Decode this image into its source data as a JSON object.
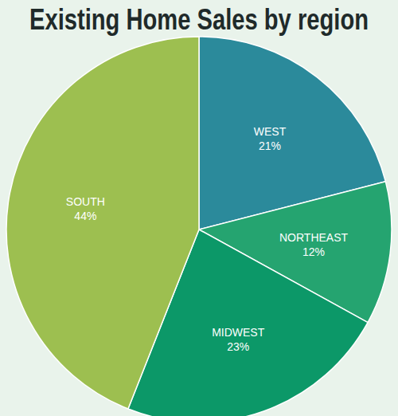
{
  "chart_data": {
    "type": "pie",
    "title": "Existing Home Sales by region",
    "categories": [
      "WEST",
      "NORTHEAST",
      "MIDWEST",
      "SOUTH"
    ],
    "values": [
      21,
      12,
      23,
      44
    ],
    "value_labels": [
      "21%",
      "12%",
      "23%",
      "44%"
    ],
    "colors": [
      "#2b8a9b",
      "#25a470",
      "#0c9868",
      "#9dbf50"
    ],
    "data_labels": true
  }
}
